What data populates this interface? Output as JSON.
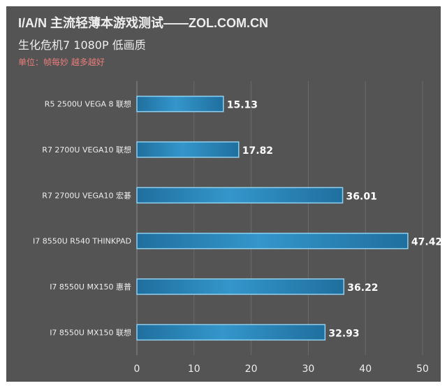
{
  "header": {
    "title": "I/A/N 主流轻薄本游戏测试——ZOL.COM.CN",
    "subtitle": "生化危机7 1080P 低画质",
    "unit_note": "单位：帧每妙 越多越好"
  },
  "chart_data": {
    "type": "bar",
    "orientation": "horizontal",
    "title": "I/A/N 主流轻薄本游戏测试——ZOL.COM.CN",
    "subtitle": "生化危机7 1080P 低画质",
    "categories": [
      "R5 2500U VEGA 8  联想",
      "R7 2700U VEGA10 联想",
      "R7 2700U VEGA10 宏碁",
      "I7 8550U R540 THINKPAD",
      "I7 8550U MX150 惠普",
      "I7 8550U MX150 联想"
    ],
    "values": [
      15.13,
      17.82,
      36.01,
      47.42,
      36.22,
      32.93
    ],
    "xlim": [
      0,
      50
    ],
    "xticks": [
      0,
      10,
      20,
      30,
      40,
      50
    ],
    "grid": true,
    "data_labels": true,
    "colors": {
      "bar": "#2e8bc0",
      "background": "#545454",
      "text": "#eeeeee",
      "unit_note": "#e87d7a"
    }
  }
}
